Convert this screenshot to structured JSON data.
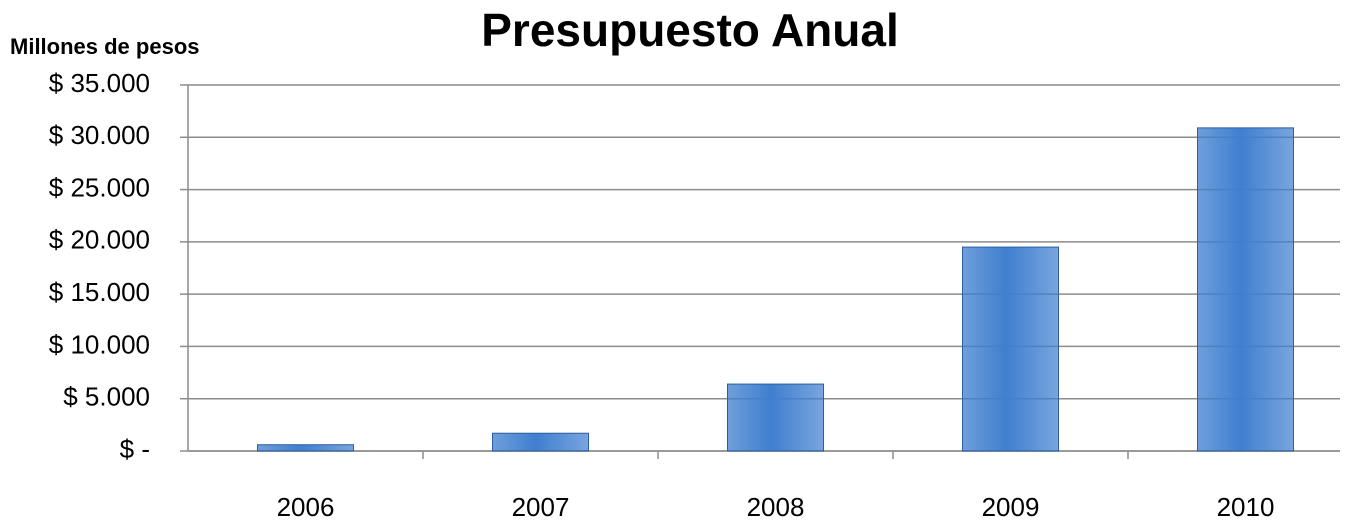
{
  "chart_data": {
    "type": "bar",
    "title": "Presupuesto Anual",
    "y_axis_label": "Millones de pesos",
    "categories": [
      "2006",
      "2007",
      "2008",
      "2009",
      "2010"
    ],
    "values": [
      600,
      1700,
      6400,
      19500,
      30900
    ],
    "color": "#3f7fcf",
    "ylim": [
      0,
      35000
    ],
    "yticks": [
      {
        "value": 0,
        "label": "$ -"
      },
      {
        "value": 5000,
        "label": "$ 5.000"
      },
      {
        "value": 10000,
        "label": "$ 10.000"
      },
      {
        "value": 15000,
        "label": "$ 15.000"
      },
      {
        "value": 20000,
        "label": "$ 20.000"
      },
      {
        "value": 25000,
        "label": "$ 25.000"
      },
      {
        "value": 30000,
        "label": "$ 30.000"
      },
      {
        "value": 35000,
        "label": "$ 35.000"
      }
    ],
    "grid": true
  }
}
